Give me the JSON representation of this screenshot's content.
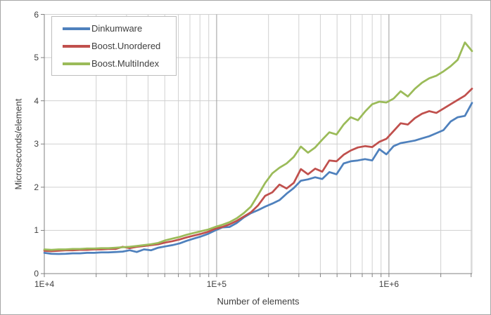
{
  "window": {
    "background": "#FFFFFF",
    "border_color": "#A6A6A6"
  },
  "chart_data": {
    "type": "line",
    "title": "",
    "xlabel": "Number of elements",
    "ylabel": "Microseconds/element",
    "x_axis": {
      "label": "Number of elements",
      "scale": "log",
      "min": 10000,
      "max": 3035000,
      "tick_labels": [
        "1E+4",
        "1E+5",
        "1E+6"
      ],
      "tick_values": [
        10000,
        100000,
        1000000
      ],
      "minor_gridlines": true
    },
    "y_axis": {
      "label": "Microseconds/element",
      "min": 0,
      "max": 6,
      "tick_labels": [
        "0",
        "1",
        "2",
        "3",
        "4",
        "5",
        "6"
      ],
      "tick_values": [
        0,
        1,
        2,
        3,
        4,
        5,
        6
      ]
    },
    "legend": {
      "position": "top-left"
    },
    "colors": {
      "grid_minor": "#D0D0D0",
      "grid_major_vertical": "#9C9C9C",
      "axis_line": "#808080",
      "text": "#3F3F3F"
    },
    "x": [
      10000,
      11000,
      12100,
      13300,
      14600,
      16100,
      17700,
      19500,
      21400,
      23500,
      25900,
      28500,
      31300,
      34400,
      37900,
      41700,
      45800,
      50400,
      55400,
      61000,
      67100,
      73800,
      81200,
      89300,
      98200,
      108000,
      118800,
      130700,
      143800,
      158200,
      174000,
      191400,
      210500,
      231600,
      254700,
      280200,
      308200,
      339000,
      372900,
      410200,
      451200,
      496300,
      545900,
      600500,
      660600,
      726600,
      799300,
      879200,
      967100,
      1063800,
      1170200,
      1287200,
      1415900,
      1557500,
      1713200,
      1884500,
      2072900,
      2280200,
      2508200,
      2759000,
      3035000
    ],
    "series": [
      {
        "name": "Dinkumware",
        "color": "#4F81BD",
        "values": [
          0.48,
          0.46,
          0.455,
          0.46,
          0.47,
          0.47,
          0.48,
          0.48,
          0.49,
          0.49,
          0.5,
          0.51,
          0.54,
          0.5,
          0.56,
          0.54,
          0.6,
          0.63,
          0.66,
          0.7,
          0.76,
          0.81,
          0.86,
          0.92,
          1.0,
          1.07,
          1.08,
          1.17,
          1.3,
          1.4,
          1.47,
          1.55,
          1.62,
          1.7,
          1.85,
          1.98,
          2.15,
          2.18,
          2.23,
          2.19,
          2.35,
          2.3,
          2.55,
          2.6,
          2.62,
          2.65,
          2.62,
          2.88,
          2.76,
          2.95,
          3.02,
          3.05,
          3.08,
          3.13,
          3.18,
          3.25,
          3.32,
          3.52,
          3.62,
          3.65,
          3.95
        ]
      },
      {
        "name": "Boost.Unordered",
        "color": "#C0504D",
        "values": [
          0.53,
          0.52,
          0.53,
          0.54,
          0.54,
          0.55,
          0.55,
          0.56,
          0.56,
          0.57,
          0.57,
          0.62,
          0.59,
          0.62,
          0.64,
          0.66,
          0.68,
          0.72,
          0.75,
          0.79,
          0.84,
          0.88,
          0.92,
          0.97,
          1.04,
          1.08,
          1.14,
          1.22,
          1.32,
          1.42,
          1.58,
          1.8,
          1.88,
          2.06,
          1.97,
          2.1,
          2.42,
          2.3,
          2.43,
          2.36,
          2.62,
          2.6,
          2.75,
          2.85,
          2.92,
          2.95,
          2.93,
          3.05,
          3.12,
          3.3,
          3.48,
          3.45,
          3.6,
          3.7,
          3.76,
          3.72,
          3.82,
          3.92,
          4.02,
          4.12,
          4.28
        ]
      },
      {
        "name": "Boost.MultiIndex",
        "color": "#9BBB59",
        "values": [
          0.56,
          0.55,
          0.56,
          0.56,
          0.57,
          0.57,
          0.58,
          0.58,
          0.59,
          0.59,
          0.6,
          0.61,
          0.62,
          0.64,
          0.66,
          0.68,
          0.71,
          0.77,
          0.81,
          0.85,
          0.9,
          0.94,
          0.98,
          1.02,
          1.08,
          1.13,
          1.19,
          1.28,
          1.4,
          1.55,
          1.82,
          2.1,
          2.32,
          2.45,
          2.55,
          2.7,
          2.94,
          2.8,
          2.92,
          3.1,
          3.27,
          3.22,
          3.45,
          3.62,
          3.55,
          3.75,
          3.92,
          3.98,
          3.96,
          4.05,
          4.22,
          4.1,
          4.28,
          4.42,
          4.52,
          4.58,
          4.68,
          4.8,
          4.95,
          5.35,
          5.15
        ]
      }
    ]
  }
}
